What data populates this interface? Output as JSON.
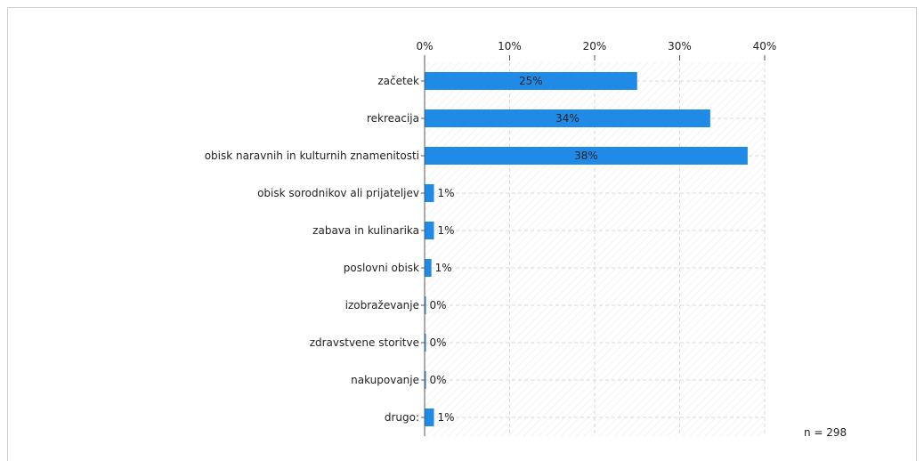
{
  "chart_data": {
    "type": "bar",
    "orientation": "horizontal",
    "categories": [
      "začetek",
      "rekreacija",
      "obisk naravnih in kulturnih znamenitosti",
      "obisk sorodnikov ali prijateljev",
      "zabava in kulinarika",
      "poslovni obisk",
      "izobraževanje",
      "zdravstvene storitve",
      "nakupovanje",
      "drugo:"
    ],
    "values": [
      25,
      34,
      38,
      1,
      1,
      1,
      0,
      0,
      0,
      1
    ],
    "value_labels": [
      "25%",
      "34%",
      "38%",
      "1%",
      "1%",
      "1%",
      "0%",
      "0%",
      "0%",
      "1%"
    ],
    "bar_widths": [
      25,
      33.6,
      38,
      1.1,
      1.1,
      0.8,
      0.15,
      0.15,
      0.15,
      1.1
    ],
    "xlim": [
      0,
      40
    ],
    "xticks": [
      0,
      10,
      20,
      30,
      40
    ],
    "xtick_labels": [
      "0%",
      "10%",
      "20%",
      "30%",
      "40%"
    ],
    "x_axis_position": "top",
    "grid": true,
    "legend": "none",
    "title": "",
    "xlabel": "",
    "ylabel": "",
    "colors": {
      "bar": "#1f8be6",
      "grid": "#d9d9d9",
      "hatch": "#ececec",
      "axis": "#555555",
      "text": "#222222"
    }
  },
  "footer": {
    "n_label": "n = 298"
  }
}
